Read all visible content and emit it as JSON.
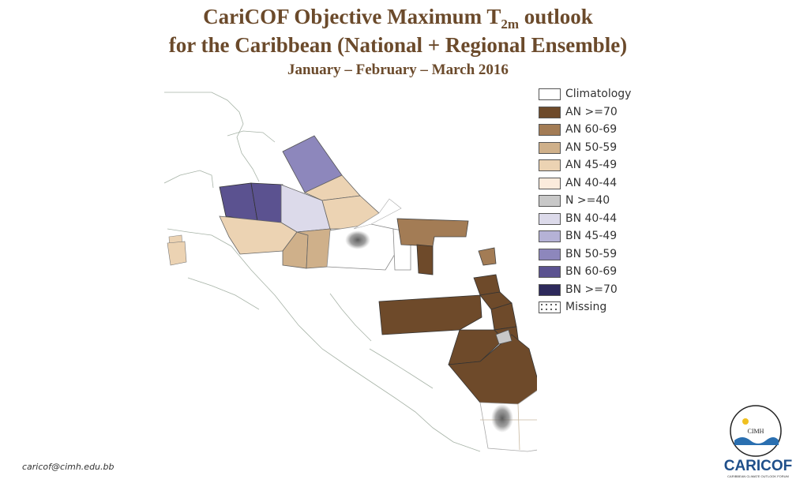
{
  "header": {
    "title_line1_pre": "CariCOF Objective Maximum T",
    "title_line1_sub": "2m",
    "title_line1_post": " outlook",
    "title_line2": "for the Caribbean (National + Regional Ensemble)",
    "subtitle": "January – February – March 2016"
  },
  "legend": {
    "items": [
      {
        "label": "Climatology",
        "color": "#ffffff"
      },
      {
        "label": "AN >=70",
        "color": "#6e4a2a"
      },
      {
        "label": "AN 60-69",
        "color": "#a37c55"
      },
      {
        "label": "AN 50-59",
        "color": "#cfb08a"
      },
      {
        "label": "AN 45-49",
        "color": "#ecd3b3"
      },
      {
        "label": "AN 40-44",
        "color": "#fbebdc"
      },
      {
        "label": "N >=40",
        "color": "#c8c8c8"
      },
      {
        "label": "BN 40-44",
        "color": "#dcdaea"
      },
      {
        "label": "BN 45-49",
        "color": "#b5b2d6"
      },
      {
        "label": "BN 50-59",
        "color": "#8d87bc"
      },
      {
        "label": "BN 60-69",
        "color": "#5b5290"
      },
      {
        "label": "BN >=70",
        "color": "#2e2a5c"
      },
      {
        "label": "Missing",
        "color": "#ffffff",
        "pattern": "dots"
      }
    ]
  },
  "footer": {
    "email": "caricof@cimh.edu.bb",
    "logo_badge_text": "CIMH",
    "logo_word": "CARICOF",
    "logo_tagline": "CARIBBEAN CLIMATE OUTLOOK FORUM"
  }
}
